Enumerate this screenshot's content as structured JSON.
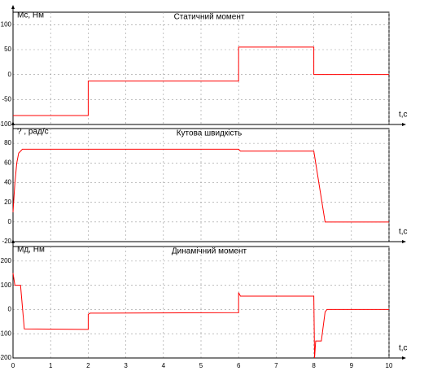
{
  "chart_data": [
    {
      "type": "line",
      "title": "Статичний момент",
      "ylabel": "Mс, Нм",
      "xlabel": "t,c",
      "color": "#ff0000",
      "grid": true,
      "x": [
        0,
        2,
        2,
        6,
        6,
        8,
        8,
        10
      ],
      "values": [
        -82,
        -82,
        -13,
        -13,
        55,
        55,
        0,
        0
      ],
      "xlim": [
        0,
        10
      ],
      "xticks": [
        0,
        1,
        2,
        3,
        4,
        5,
        6,
        7,
        8,
        9,
        10
      ],
      "ylim": [
        -100,
        125
      ],
      "yticks": [
        -100,
        -50,
        0,
        50,
        100
      ]
    },
    {
      "type": "line",
      "title": "Кутова швидкість",
      "ylabel": "? , рад/с",
      "xlabel": "t,c",
      "color": "#ff0000",
      "grid": true,
      "x": [
        0,
        0.05,
        0.1,
        0.15,
        0.25,
        6,
        6.05,
        8,
        8.3,
        10
      ],
      "values": [
        10,
        40,
        60,
        70,
        74,
        74,
        72,
        72,
        0,
        0
      ],
      "xlim": [
        0,
        10
      ],
      "xticks": [
        0,
        1,
        2,
        3,
        4,
        5,
        6,
        7,
        8,
        9,
        10
      ],
      "ylim": [
        -20,
        95
      ],
      "yticks": [
        -20,
        0,
        20,
        40,
        60,
        80
      ]
    },
    {
      "type": "line",
      "title": "Динамічний момент",
      "ylabel": "Mд, Нм",
      "xlabel": "t,c",
      "color": "#ff0000",
      "grid": true,
      "x": [
        0,
        0.05,
        0.2,
        0.3,
        2,
        2,
        2.05,
        6,
        6,
        6.05,
        8,
        8.02,
        8.05,
        8.2,
        8.3,
        8.35,
        10
      ],
      "values": [
        150,
        100,
        100,
        -80,
        -82,
        -20,
        -15,
        -13,
        70,
        55,
        55,
        -200,
        -130,
        -130,
        -10,
        0,
        0
      ],
      "xlim": [
        0,
        10
      ],
      "xticks": [
        0,
        1,
        2,
        3,
        4,
        5,
        6,
        7,
        8,
        9,
        10
      ],
      "ylim": [
        -200,
        260
      ],
      "yticks": [
        -200,
        -100,
        0,
        100,
        200
      ]
    }
  ]
}
